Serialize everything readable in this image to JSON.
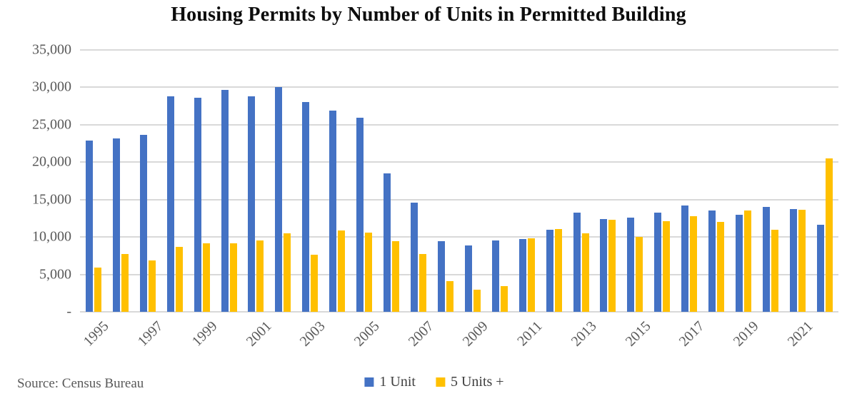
{
  "title": "Housing Permits by Number of Units in Permitted Building",
  "source_note": "Source: Census Bureau",
  "colors": {
    "series_1_unit": "#4472C4",
    "series_5_units_plus": "#FFC000",
    "gridline": "#D9D9D9",
    "axis_text": "#595959",
    "legend_text": "#404040",
    "title_text": "#0D0D0D",
    "background": "#FFFFFF"
  },
  "legend": {
    "items": [
      {
        "label": "1 Unit",
        "color": "#4472C4"
      },
      {
        "label": "5 Units +",
        "color": "#FFC000"
      }
    ]
  },
  "chart_data": {
    "type": "bar",
    "title": "Housing Permits by Number of Units in Permitted Building",
    "xlabel": "",
    "ylabel": "",
    "ylim": [
      0,
      35000
    ],
    "y_tick_step": 5000,
    "grid": true,
    "legend_position": "bottom-center",
    "source": "Source: Census Bureau",
    "x": [
      1995,
      1996,
      1997,
      1998,
      1999,
      2000,
      2001,
      2002,
      2003,
      2004,
      2005,
      2006,
      2007,
      2008,
      2009,
      2010,
      2011,
      2012,
      2013,
      2014,
      2015,
      2016,
      2017,
      2018,
      2019,
      2020,
      2021,
      2022
    ],
    "x_tick_labels": [
      "1995",
      "1997",
      "1999",
      "2001",
      "2003",
      "2005",
      "2007",
      "2009",
      "2011",
      "2013",
      "2015",
      "2017",
      "2019",
      "2021"
    ],
    "y_tick_labels": [
      "35,000",
      "30,000",
      "25,000",
      "20,000",
      "15,000",
      "10,000",
      "5,000",
      "-"
    ],
    "series": [
      {
        "name": "1 Unit",
        "key": "1-unit",
        "color": "#4472C4",
        "values": [
          22900,
          23200,
          23700,
          28800,
          28600,
          29700,
          28800,
          30000,
          28000,
          26900,
          25900,
          18500,
          14600,
          9400,
          8900,
          9500,
          9700,
          11000,
          13300,
          12400,
          12600,
          13300,
          14200,
          13500,
          13000,
          14000,
          13700,
          11600
        ]
      },
      {
        "name": "5 Units +",
        "key": "5-units-plus",
        "color": "#FFC000",
        "values": [
          5900,
          7700,
          6900,
          8700,
          9200,
          9200,
          9500,
          10500,
          7600,
          10900,
          10600,
          9400,
          7700,
          4100,
          3000,
          3400,
          9800,
          11100,
          10500,
          12300,
          10000,
          12100,
          12800,
          12000,
          13500,
          11000,
          13600,
          20500
        ]
      }
    ]
  }
}
